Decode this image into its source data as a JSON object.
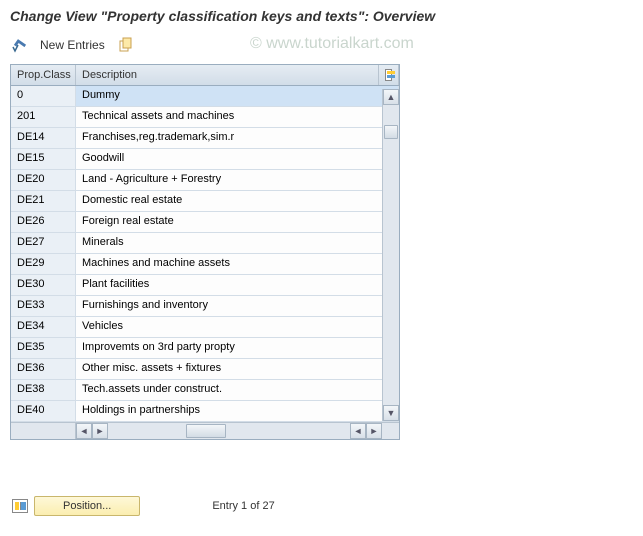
{
  "header": {
    "title": "Change View \"Property classification keys and texts\": Overview"
  },
  "toolbar": {
    "new_entries_label": "New Entries"
  },
  "table": {
    "columns": {
      "prop_class": "Prop.Class",
      "description": "Description"
    },
    "rows": [
      {
        "class": "0",
        "desc": "Dummy",
        "selected": true
      },
      {
        "class": "201",
        "desc": "Technical assets and machines"
      },
      {
        "class": "DE14",
        "desc": "Franchises,reg.trademark,sim.r"
      },
      {
        "class": "DE15",
        "desc": "Goodwill"
      },
      {
        "class": "DE20",
        "desc": "Land - Agriculture + Forestry"
      },
      {
        "class": "DE21",
        "desc": "Domestic real estate"
      },
      {
        "class": "DE26",
        "desc": "Foreign real estate"
      },
      {
        "class": "DE27",
        "desc": "Minerals"
      },
      {
        "class": "DE29",
        "desc": "Machines and machine assets"
      },
      {
        "class": "DE30",
        "desc": "Plant facilities"
      },
      {
        "class": "DE33",
        "desc": "Furnishings and inventory"
      },
      {
        "class": "DE34",
        "desc": "Vehicles"
      },
      {
        "class": "DE35",
        "desc": "Improvemts on 3rd party propty"
      },
      {
        "class": "DE36",
        "desc": "Other misc. assets + fixtures"
      },
      {
        "class": "DE38",
        "desc": "Tech.assets under construct."
      },
      {
        "class": "DE40",
        "desc": "Holdings in partnerships"
      }
    ]
  },
  "footer": {
    "position_label": "Position...",
    "entry_status": "Entry 1 of 27"
  },
  "watermark": "© www.tutorialkart.com",
  "colors": {
    "selected_bg": "#cfe2f5",
    "header_bg": "#d5e1ed",
    "border": "#9aadbf",
    "btn_bg": "#fbeeb0"
  }
}
